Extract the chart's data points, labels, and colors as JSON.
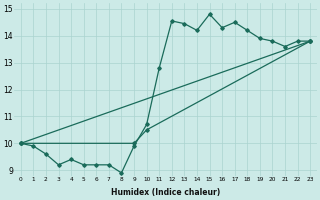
{
  "xlabel": "Humidex (Indice chaleur)",
  "xlim": [
    -0.5,
    23.5
  ],
  "ylim": [
    8.8,
    15.2
  ],
  "yticks": [
    9,
    10,
    11,
    12,
    13,
    14,
    15
  ],
  "xticks": [
    0,
    1,
    2,
    3,
    4,
    5,
    6,
    7,
    8,
    9,
    10,
    11,
    12,
    13,
    14,
    15,
    16,
    17,
    18,
    19,
    20,
    21,
    22,
    23
  ],
  "line_color": "#1a6b5a",
  "bg_color": "#cceae7",
  "grid_color": "#aad4d0",
  "zigzag_x": [
    0,
    1,
    2,
    3,
    4,
    5,
    6,
    7,
    8,
    9,
    10,
    11,
    12,
    13,
    14,
    15,
    16,
    17,
    18,
    19,
    20,
    21,
    22,
    23
  ],
  "zigzag_y": [
    10.0,
    9.9,
    9.6,
    9.2,
    9.4,
    9.2,
    9.2,
    9.2,
    8.9,
    9.9,
    10.7,
    12.8,
    14.55,
    14.45,
    14.2,
    14.8,
    14.3,
    14.5,
    14.2,
    13.9,
    13.8,
    13.6,
    13.8,
    13.8
  ],
  "line1_x": [
    0,
    23
  ],
  "line1_y": [
    10.0,
    13.8
  ],
  "line2_x": [
    0,
    9,
    10,
    23
  ],
  "line2_y": [
    10.0,
    10.0,
    10.5,
    13.8
  ]
}
